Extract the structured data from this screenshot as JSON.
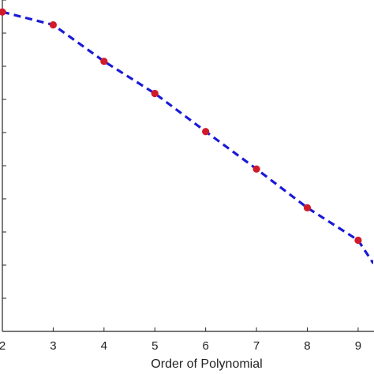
{
  "chart_data": {
    "type": "line",
    "title": "",
    "xlabel": "Order of Polynomial",
    "ylabel": "",
    "x": [
      2,
      3,
      4,
      5,
      6,
      7,
      8,
      9,
      9.3
    ],
    "series": [
      {
        "values": [
          0.964,
          0.925,
          0.815,
          0.718,
          0.603,
          0.49,
          0.373,
          0.275,
          0.205
        ],
        "line_color": "#1a1ad6",
        "marker_color": "#d11a2a",
        "line_style": "dashed",
        "marker_x": [
          2,
          3,
          4,
          5,
          6,
          7,
          8,
          9
        ]
      }
    ],
    "xlim": [
      2,
      9.25
    ],
    "ylim": [
      0,
      1
    ],
    "x_ticks": [
      "2",
      "3",
      "4",
      "5",
      "6",
      "7",
      "8",
      "9"
    ],
    "y_tick_count": 10,
    "grid": false,
    "legend": "none"
  }
}
